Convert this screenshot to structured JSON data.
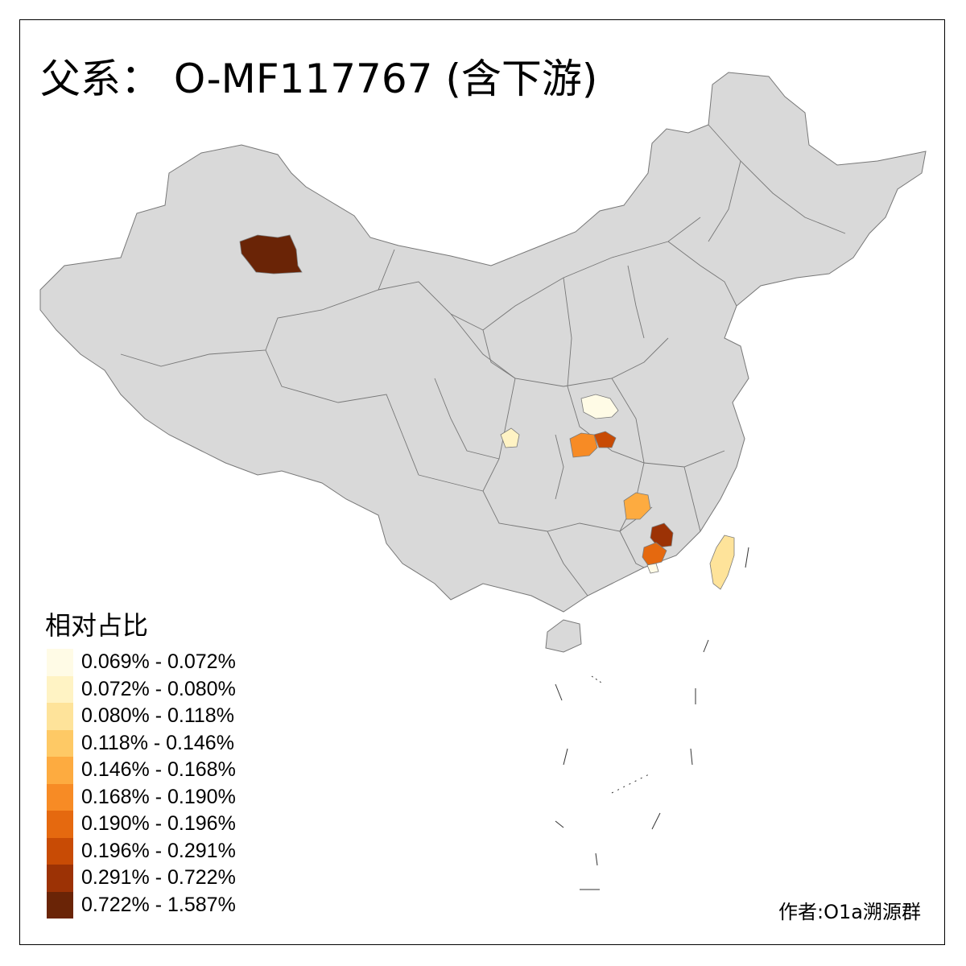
{
  "title": "父系： O-MF117767 (含下游)",
  "legend": {
    "title": "相对占比",
    "items": [
      {
        "label": "0.069% - 0.072%",
        "color": "#fffbe6"
      },
      {
        "label": "0.072% - 0.080%",
        "color": "#fff3c4"
      },
      {
        "label": "0.080% - 0.118%",
        "color": "#fee39a"
      },
      {
        "label": "0.118% - 0.146%",
        "color": "#fec965"
      },
      {
        "label": "0.146% - 0.168%",
        "color": "#fdab40"
      },
      {
        "label": "0.168% - 0.190%",
        "color": "#f78b25"
      },
      {
        "label": "0.190% - 0.196%",
        "color": "#e5690f"
      },
      {
        "label": "0.196% - 0.291%",
        "color": "#c84b05"
      },
      {
        "label": "0.291% - 0.722%",
        "color": "#9c3205"
      },
      {
        "label": "0.722% - 1.587%",
        "color": "#6a2406"
      }
    ]
  },
  "author": "作者:O1a溯源群",
  "map": {
    "base_color": "#d9d9d9",
    "border_color": "#777777",
    "highlighted_regions": [
      {
        "name": "northern-xinjiang",
        "class": 9
      },
      {
        "name": "henan-north",
        "class": 0
      },
      {
        "name": "sichuan-east",
        "class": 1
      },
      {
        "name": "hubei-west",
        "class": 5
      },
      {
        "name": "hubei-central",
        "class": 7
      },
      {
        "name": "jiangxi-central",
        "class": 4
      },
      {
        "name": "jiangxi-south",
        "class": 8
      },
      {
        "name": "guangdong-north",
        "class": 6
      },
      {
        "name": "guangdong-small",
        "class": 0
      },
      {
        "name": "taiwan",
        "class": 2
      }
    ]
  }
}
